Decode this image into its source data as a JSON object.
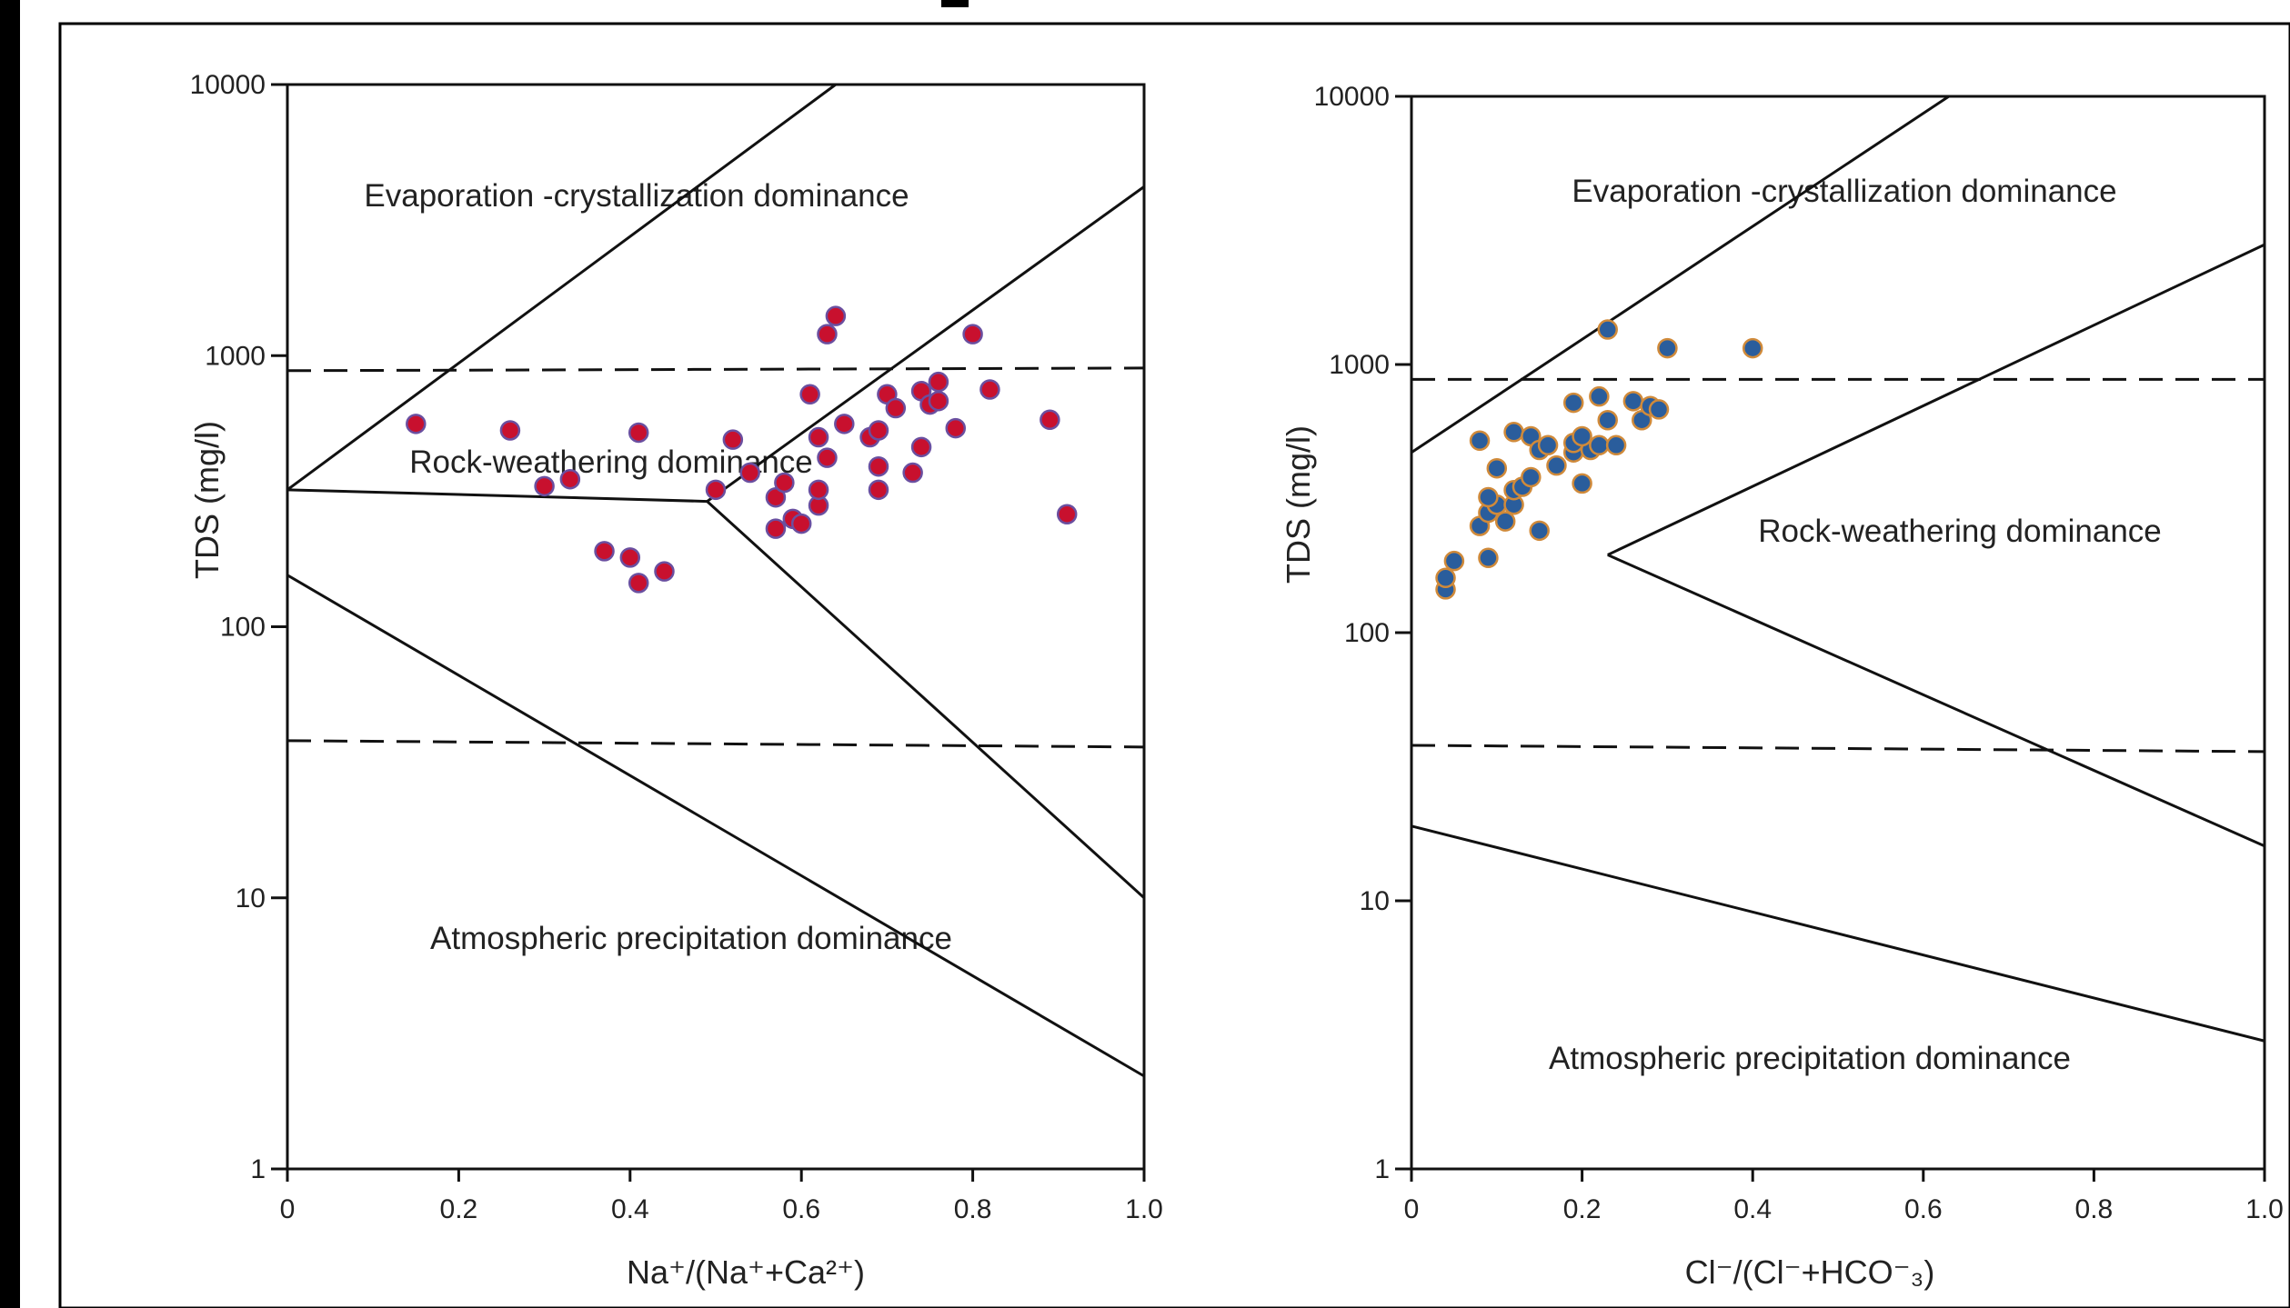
{
  "chart_data": [
    {
      "type": "scatter",
      "title": "",
      "xlabel": "Na⁺/(Na⁺+Ca²⁺)",
      "ylabel": "TDS (mg/l)",
      "xlim": [
        0,
        1.0
      ],
      "ylim": [
        1,
        10000
      ],
      "y_scale": "log",
      "x_ticks": [
        "0",
        "0.2",
        "0.4",
        "0.6",
        "0.8",
        "1.0"
      ],
      "y_ticks": [
        "1",
        "10",
        "100",
        "1000",
        "10000"
      ],
      "marker_color": "#c8102e",
      "marker_edge": "#6a4fa0",
      "regions": [
        "Evaporation -crystallization dominance",
        "Rock-weathering dominance",
        "Atmospheric precipitation dominance"
      ],
      "points": [
        {
          "x": 0.15,
          "y": 560
        },
        {
          "x": 0.26,
          "y": 530
        },
        {
          "x": 0.3,
          "y": 330
        },
        {
          "x": 0.33,
          "y": 350
        },
        {
          "x": 0.37,
          "y": 190
        },
        {
          "x": 0.4,
          "y": 180
        },
        {
          "x": 0.41,
          "y": 145
        },
        {
          "x": 0.44,
          "y": 160
        },
        {
          "x": 0.41,
          "y": 520
        },
        {
          "x": 0.5,
          "y": 320
        },
        {
          "x": 0.52,
          "y": 490
        },
        {
          "x": 0.54,
          "y": 370
        },
        {
          "x": 0.57,
          "y": 300
        },
        {
          "x": 0.58,
          "y": 340
        },
        {
          "x": 0.57,
          "y": 230
        },
        {
          "x": 0.59,
          "y": 250
        },
        {
          "x": 0.6,
          "y": 240
        },
        {
          "x": 0.62,
          "y": 280
        },
        {
          "x": 0.62,
          "y": 320
        },
        {
          "x": 0.62,
          "y": 500
        },
        {
          "x": 0.63,
          "y": 420
        },
        {
          "x": 0.65,
          "y": 560
        },
        {
          "x": 0.61,
          "y": 720
        },
        {
          "x": 0.63,
          "y": 1200
        },
        {
          "x": 0.64,
          "y": 1400
        },
        {
          "x": 0.68,
          "y": 500
        },
        {
          "x": 0.69,
          "y": 530
        },
        {
          "x": 0.69,
          "y": 390
        },
        {
          "x": 0.69,
          "y": 320
        },
        {
          "x": 0.7,
          "y": 720
        },
        {
          "x": 0.71,
          "y": 640
        },
        {
          "x": 0.73,
          "y": 370
        },
        {
          "x": 0.74,
          "y": 460
        },
        {
          "x": 0.74,
          "y": 740
        },
        {
          "x": 0.75,
          "y": 660
        },
        {
          "x": 0.76,
          "y": 680
        },
        {
          "x": 0.76,
          "y": 800
        },
        {
          "x": 0.78,
          "y": 540
        },
        {
          "x": 0.8,
          "y": 1200
        },
        {
          "x": 0.82,
          "y": 750
        },
        {
          "x": 0.89,
          "y": 580
        },
        {
          "x": 0.91,
          "y": 260
        }
      ]
    },
    {
      "type": "scatter",
      "title": "",
      "xlabel": "Cl⁻/(Cl⁻+HCO⁻₃)",
      "ylabel": "TDS (mg/l)",
      "xlim": [
        0,
        1.0
      ],
      "ylim": [
        1,
        10000
      ],
      "y_scale": "log",
      "x_ticks": [
        "0",
        "0.2",
        "0.4",
        "0.6",
        "0.8",
        "1.0"
      ],
      "y_ticks": [
        "1",
        "10",
        "100",
        "1000",
        "10000"
      ],
      "marker_color": "#2a5d9c",
      "marker_edge": "#d08a3a",
      "regions": [
        "Evaporation -crystallization dominance",
        "Rock-weathering dominance",
        "Atmospheric precipitation dominance"
      ],
      "points": [
        {
          "x": 0.04,
          "y": 145
        },
        {
          "x": 0.04,
          "y": 160
        },
        {
          "x": 0.05,
          "y": 185
        },
        {
          "x": 0.09,
          "y": 190
        },
        {
          "x": 0.08,
          "y": 250
        },
        {
          "x": 0.09,
          "y": 280
        },
        {
          "x": 0.1,
          "y": 300
        },
        {
          "x": 0.09,
          "y": 320
        },
        {
          "x": 0.1,
          "y": 410
        },
        {
          "x": 0.11,
          "y": 260
        },
        {
          "x": 0.12,
          "y": 300
        },
        {
          "x": 0.12,
          "y": 340
        },
        {
          "x": 0.13,
          "y": 350
        },
        {
          "x": 0.14,
          "y": 380
        },
        {
          "x": 0.15,
          "y": 240
        },
        {
          "x": 0.08,
          "y": 520
        },
        {
          "x": 0.12,
          "y": 560
        },
        {
          "x": 0.14,
          "y": 540
        },
        {
          "x": 0.15,
          "y": 480
        },
        {
          "x": 0.16,
          "y": 500
        },
        {
          "x": 0.17,
          "y": 420
        },
        {
          "x": 0.19,
          "y": 470
        },
        {
          "x": 0.19,
          "y": 510
        },
        {
          "x": 0.2,
          "y": 360
        },
        {
          "x": 0.21,
          "y": 480
        },
        {
          "x": 0.22,
          "y": 500
        },
        {
          "x": 0.23,
          "y": 620
        },
        {
          "x": 0.24,
          "y": 500
        },
        {
          "x": 0.2,
          "y": 540
        },
        {
          "x": 0.19,
          "y": 720
        },
        {
          "x": 0.22,
          "y": 760
        },
        {
          "x": 0.26,
          "y": 730
        },
        {
          "x": 0.27,
          "y": 620
        },
        {
          "x": 0.28,
          "y": 700
        },
        {
          "x": 0.29,
          "y": 680
        },
        {
          "x": 0.23,
          "y": 1350
        },
        {
          "x": 0.3,
          "y": 1150
        },
        {
          "x": 0.4,
          "y": 1150
        }
      ]
    }
  ]
}
